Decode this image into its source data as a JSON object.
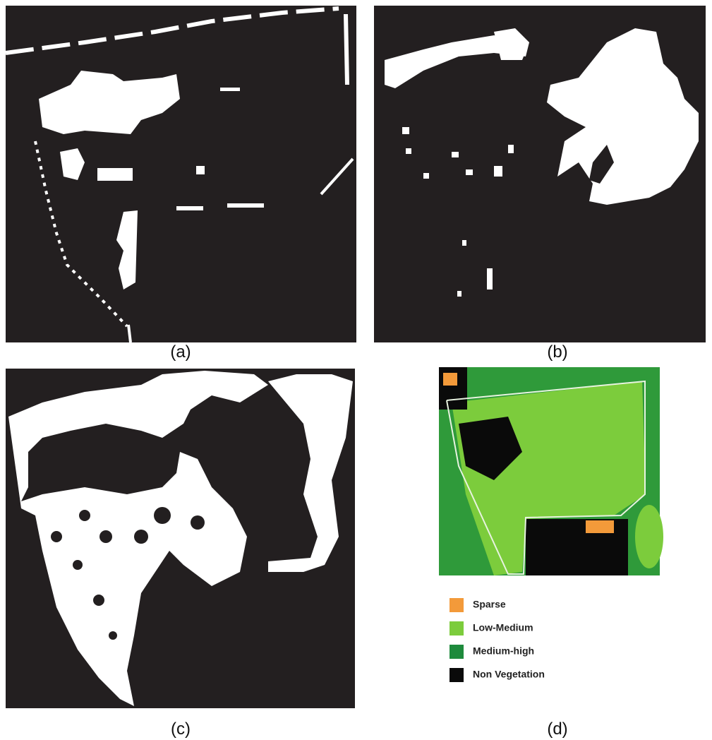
{
  "panels": {
    "a": {
      "label": "(a)"
    },
    "b": {
      "label": "(b)"
    },
    "c": {
      "label": "(c)"
    },
    "d": {
      "label": "(d)"
    }
  },
  "legend": [
    {
      "label": "Sparse",
      "color": "#f39a3a"
    },
    {
      "label": "Low-Medium",
      "color": "#7ccc3c"
    },
    {
      "label": "Medium-high",
      "color": "#1e8a3c"
    },
    {
      "label": "Non Vegetation",
      "color": "#0a0a0a"
    }
  ]
}
